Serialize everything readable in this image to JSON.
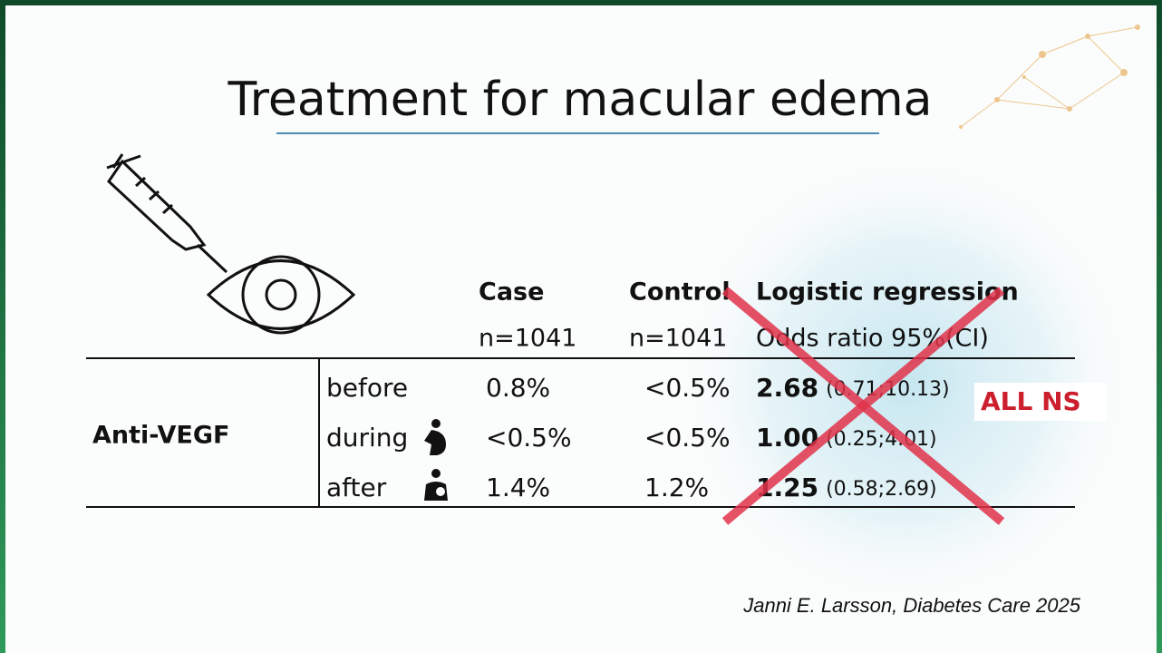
{
  "title": "Treatment for macular edema",
  "table": {
    "header": [
      [
        "Case",
        "n=1041"
      ],
      [
        "Control",
        "n=1041"
      ],
      [
        "Logistic regression",
        "Odds ratio 95%(CI)"
      ]
    ],
    "group": "Anti-VEGF",
    "rows": [
      [
        "before",
        "0.8%",
        "<0.5%",
        "2.68",
        "(0.71;10.13)"
      ],
      [
        "during",
        "<0.5%",
        "<0.5%",
        "1.00",
        "(0.25;4.01)"
      ],
      [
        "after",
        "1.4%",
        "1.2%",
        "1.25",
        "(0.58;2.69)"
      ]
    ]
  },
  "annotation": "ALL NS",
  "citation": "Janni E. Larsson, Diabetes Care 2025"
}
